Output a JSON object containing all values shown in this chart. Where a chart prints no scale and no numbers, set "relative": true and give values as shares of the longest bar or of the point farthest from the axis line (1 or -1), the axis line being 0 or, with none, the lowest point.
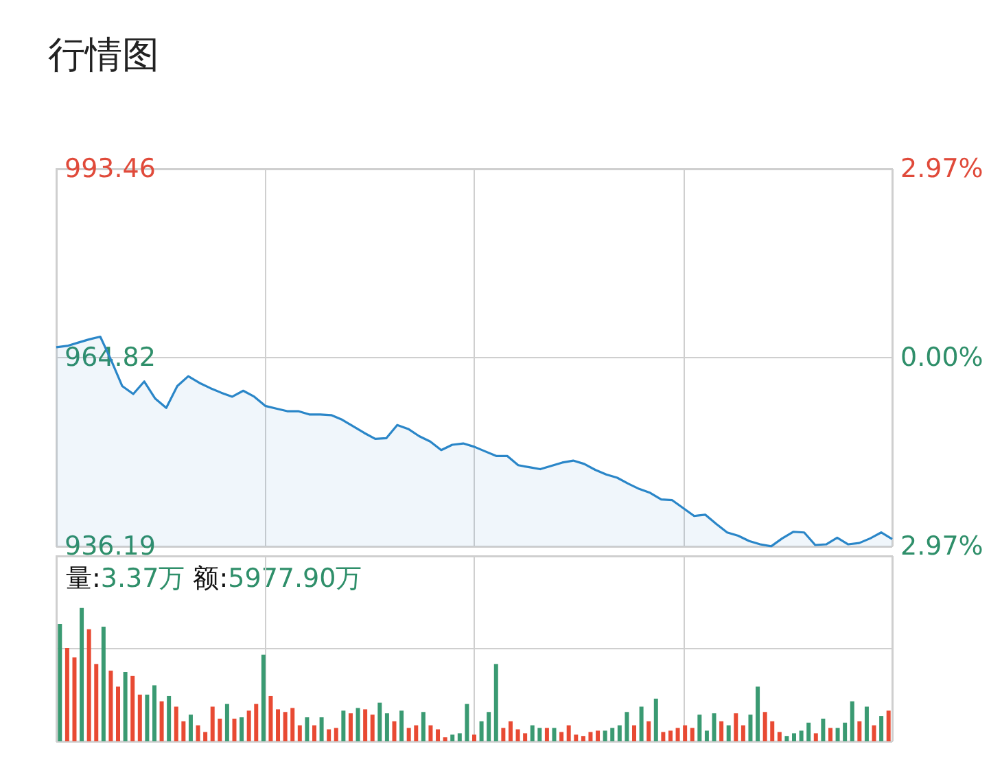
{
  "chart_data": [
    {
      "type": "area",
      "title": "行情图",
      "categories": [
        null,
        null,
        null,
        null,
        null,
        null,
        null,
        null,
        null,
        null,
        null,
        null,
        null,
        null,
        null,
        null,
        null,
        null,
        null,
        null,
        null,
        null,
        null,
        null,
        null,
        null,
        null,
        null,
        null,
        null,
        null,
        null,
        null,
        null,
        null,
        null,
        null,
        null,
        null,
        null,
        null,
        null,
        null,
        null,
        null,
        null,
        null,
        null,
        null,
        null,
        null,
        null,
        null,
        null,
        null,
        null,
        null,
        null,
        null,
        null,
        null,
        null,
        null,
        null,
        null,
        null,
        null,
        null,
        null,
        null,
        null,
        null,
        null,
        null,
        null,
        null,
        null
      ],
      "ylim": [
        936.19,
        993.46
      ],
      "yticks": [
        936.19,
        964.82,
        993.46
      ],
      "y2lim": [
        -2.97,
        2.97
      ],
      "y2ticks": [
        {
          "value": -2.97,
          "label": "2.97%"
        },
        {
          "value": 0,
          "label": "0.00%"
        },
        {
          "value": 2.97,
          "label": "2.97%"
        }
      ],
      "grid": true,
      "tick_labels": "y",
      "marker": "none",
      "series": [
        {
          "color": "#2a86c8",
          "values": [
            966.4,
            966.6,
            967.1,
            967.6,
            968.0,
            964.4,
            960.5,
            959.3,
            961.2,
            958.6,
            957.2,
            960.5,
            962.0,
            961.0,
            960.2,
            959.5,
            958.9,
            959.8,
            958.9,
            957.5,
            957.1,
            956.7,
            956.7,
            956.2,
            956.2,
            956.1,
            955.4,
            954.4,
            953.4,
            952.5,
            952.6,
            954.6,
            954.0,
            952.9,
            952.1,
            950.8,
            951.6,
            951.8,
            951.3,
            950.6,
            949.9,
            949.9,
            948.5,
            948.2,
            947.9,
            948.4,
            948.9,
            949.2,
            948.7,
            947.8,
            947.1,
            946.6,
            945.7,
            944.9,
            944.3,
            943.3,
            943.2,
            942.0,
            940.8,
            941.0,
            939.6,
            938.3,
            937.8,
            937.0,
            936.5,
            936.2,
            937.4,
            938.4,
            938.3,
            936.4,
            936.5,
            937.5,
            936.5,
            936.7,
            937.4,
            938.3,
            937.3
          ]
        }
      ]
    },
    {
      "type": "bar",
      "relative": true,
      "annotations": [
        "量:3.37万",
        "额:5977.90万"
      ],
      "grid": true,
      "tick_labels": false,
      "categories": [
        null,
        null,
        null,
        null,
        null,
        null,
        null,
        null,
        null,
        null,
        null,
        null,
        null,
        null,
        null,
        null,
        null,
        null,
        null,
        null,
        null,
        null,
        null,
        null,
        null,
        null,
        null,
        null,
        null,
        null,
        null,
        null,
        null,
        null,
        null,
        null,
        null,
        null,
        null,
        null,
        null,
        null,
        null,
        null,
        null,
        null,
        null,
        null,
        null,
        null,
        null,
        null,
        null,
        null,
        null,
        null,
        null,
        null,
        null,
        null,
        null,
        null,
        null,
        null,
        null,
        null,
        null,
        null,
        null,
        null,
        null,
        null,
        null,
        null,
        null,
        null,
        null,
        null,
        null,
        null,
        null,
        null,
        null,
        null,
        null,
        null,
        null,
        null,
        null,
        null,
        null,
        null,
        null,
        null,
        null,
        null,
        null,
        null,
        null,
        null,
        null,
        null,
        null,
        null,
        null,
        null,
        null,
        null,
        null,
        null,
        null,
        null,
        null,
        null,
        null
      ],
      "values": [
        0.88,
        0.7,
        0.63,
        1.0,
        0.84,
        0.58,
        0.86,
        0.53,
        0.41,
        0.52,
        0.49,
        0.35,
        0.35,
        0.42,
        0.3,
        0.34,
        0.26,
        0.15,
        0.2,
        0.12,
        0.07,
        0.26,
        0.17,
        0.28,
        0.17,
        0.18,
        0.23,
        0.28,
        0.65,
        0.34,
        0.24,
        0.22,
        0.25,
        0.12,
        0.18,
        0.12,
        0.18,
        0.09,
        0.1,
        0.23,
        0.21,
        0.25,
        0.24,
        0.2,
        0.29,
        0.21,
        0.15,
        0.23,
        0.1,
        0.12,
        0.22,
        0.12,
        0.09,
        0.03,
        0.05,
        0.06,
        0.28,
        0.05,
        0.15,
        0.22,
        0.58,
        0.1,
        0.15,
        0.09,
        0.06,
        0.12,
        0.1,
        0.1,
        0.1,
        0.07,
        0.12,
        0.05,
        0.04,
        0.07,
        0.08,
        0.08,
        0.1,
        0.12,
        0.22,
        0.12,
        0.26,
        0.15,
        0.32,
        0.07,
        0.08,
        0.1,
        0.12,
        0.1,
        0.2,
        0.08,
        0.21,
        0.15,
        0.12,
        0.21,
        0.12,
        0.2,
        0.41,
        0.22,
        0.15,
        0.07,
        0.04,
        0.06,
        0.08,
        0.14,
        0.06,
        0.17,
        0.1,
        0.1,
        0.14,
        0.3,
        0.15,
        0.26,
        0.12,
        0.19,
        0.23
      ],
      "colors": [
        "#3a9a72",
        "#e84a33",
        "#e84a33",
        "#3a9a72",
        "#e84a33",
        "#e84a33",
        "#3a9a72",
        "#e84a33",
        "#e84a33",
        "#3a9a72",
        "#e84a33",
        "#e84a33",
        "#3a9a72",
        "#3a9a72",
        "#e84a33",
        "#3a9a72",
        "#e84a33",
        "#e84a33",
        "#3a9a72",
        "#e84a33",
        "#e84a33",
        "#e84a33",
        "#e84a33",
        "#3a9a72",
        "#e84a33",
        "#3a9a72",
        "#e84a33",
        "#e84a33",
        "#3a9a72",
        "#e84a33",
        "#e84a33",
        "#e84a33",
        "#e84a33",
        "#e84a33",
        "#3a9a72",
        "#e84a33",
        "#3a9a72",
        "#e84a33",
        "#e84a33",
        "#3a9a72",
        "#e84a33",
        "#3a9a72",
        "#e84a33",
        "#e84a33",
        "#3a9a72",
        "#3a9a72",
        "#e84a33",
        "#3a9a72",
        "#e84a33",
        "#e84a33",
        "#3a9a72",
        "#e84a33",
        "#e84a33",
        "#e84a33",
        "#3a9a72",
        "#3a9a72",
        "#3a9a72",
        "#e84a33",
        "#3a9a72",
        "#3a9a72",
        "#3a9a72",
        "#e84a33",
        "#e84a33",
        "#e84a33",
        "#e84a33",
        "#3a9a72",
        "#3a9a72",
        "#e84a33",
        "#3a9a72",
        "#e84a33",
        "#e84a33",
        "#e84a33",
        "#e84a33",
        "#e84a33",
        "#e84a33",
        "#3a9a72",
        "#3a9a72",
        "#3a9a72",
        "#3a9a72",
        "#e84a33",
        "#3a9a72",
        "#e84a33",
        "#3a9a72",
        "#e84a33",
        "#e84a33",
        "#e84a33",
        "#e84a33",
        "#e84a33",
        "#3a9a72",
        "#3a9a72",
        "#3a9a72",
        "#e84a33",
        "#3a9a72",
        "#e84a33",
        "#e84a33",
        "#3a9a72",
        "#3a9a72",
        "#e84a33",
        "#e84a33",
        "#e84a33",
        "#3a9a72",
        "#3a9a72",
        "#3a9a72",
        "#3a9a72",
        "#e84a33",
        "#3a9a72",
        "#e84a33",
        "#3a9a72",
        "#3a9a72",
        "#3a9a72",
        "#e84a33",
        "#3a9a72",
        "#e84a33",
        "#3a9a72",
        "#e84a33"
      ]
    }
  ]
}
